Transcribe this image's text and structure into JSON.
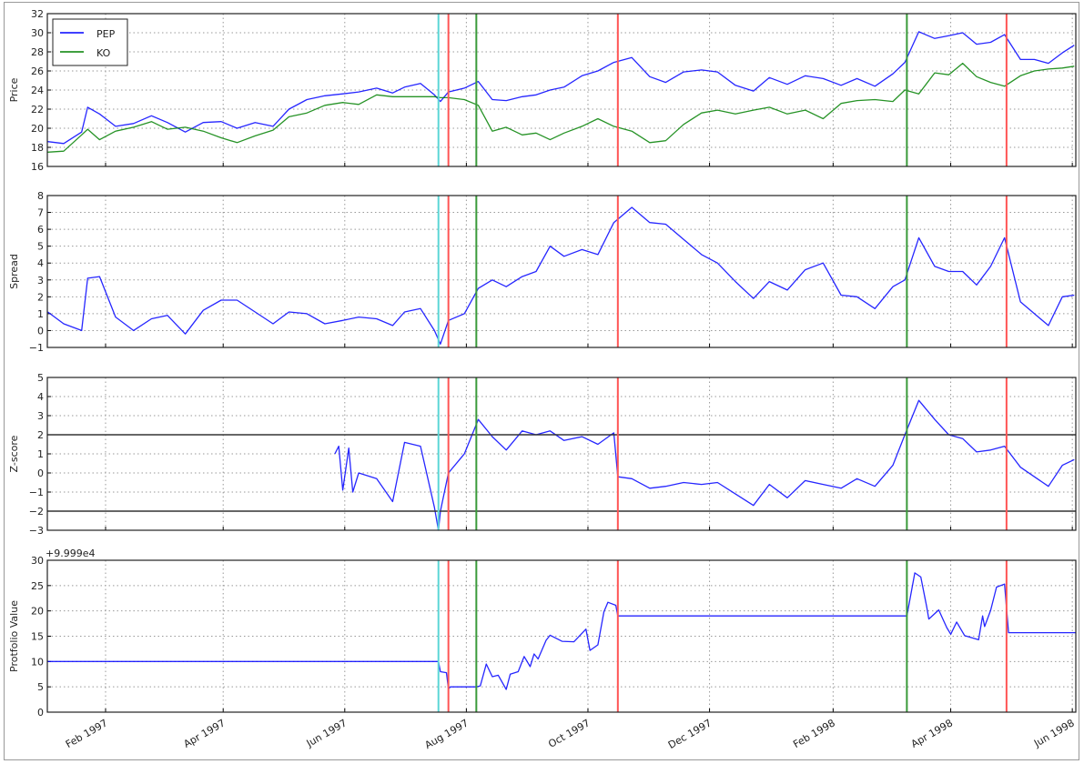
{
  "chart_data": [
    {
      "type": "line",
      "ylabel": "Price",
      "ylim": [
        16,
        32
      ],
      "yticks": [
        16,
        18,
        20,
        22,
        24,
        26,
        28,
        30,
        32
      ],
      "grid": true,
      "legend": "top-left",
      "series": [
        {
          "name": "PEP",
          "color": "#0000ff",
          "key": "pep"
        },
        {
          "name": "KO",
          "color": "#008000",
          "key": "ko"
        }
      ]
    },
    {
      "type": "line",
      "ylabel": "Spread",
      "ylim": [
        -1,
        8
      ],
      "yticks": [
        -1,
        0,
        1,
        2,
        3,
        4,
        5,
        6,
        7,
        8
      ],
      "grid": true,
      "series": [
        {
          "color": "#0000ff",
          "key": "spread"
        }
      ]
    },
    {
      "type": "line",
      "ylabel": "Z-score",
      "ylim": [
        -3,
        5
      ],
      "yticks": [
        -3,
        -2,
        -1,
        0,
        1,
        2,
        3,
        4,
        5
      ],
      "grid": true,
      "hlines": [
        2,
        -2
      ],
      "series": [
        {
          "color": "#0000ff",
          "key": "zscore"
        }
      ]
    },
    {
      "type": "line",
      "ylabel": "Protfolio Value",
      "offset_label": "+9.999e4",
      "ylim": [
        0,
        30
      ],
      "yticks": [
        0,
        5,
        10,
        15,
        20,
        25,
        30
      ],
      "grid": true,
      "series": [
        {
          "color": "#0000ff",
          "key": "portfolio"
        }
      ]
    }
  ],
  "x_axis": {
    "type": "date",
    "range": [
      "1997-01-03",
      "1998-06-03"
    ],
    "ticks": [
      {
        "date": "1997-02-01",
        "label": "Feb 1997"
      },
      {
        "date": "1997-04-01",
        "label": "Apr 1997"
      },
      {
        "date": "1997-06-01",
        "label": "Jun 1997"
      },
      {
        "date": "1997-08-01",
        "label": "Aug 1997"
      },
      {
        "date": "1997-10-01",
        "label": "Oct 1997"
      },
      {
        "date": "1997-12-01",
        "label": "Dec 1997"
      },
      {
        "date": "1998-02-01",
        "label": "Feb 1998"
      },
      {
        "date": "1998-04-01",
        "label": "Apr 1998"
      },
      {
        "date": "1998-06-01",
        "label": "Jun 1998"
      }
    ]
  },
  "event_lines": [
    {
      "date": "1997-07-18",
      "color": "#5cd6d6"
    },
    {
      "date": "1997-07-23",
      "color": "#ff5555"
    },
    {
      "date": "1997-08-06",
      "color": "#3a9a3a"
    },
    {
      "date": "1997-10-16",
      "color": "#ff5555"
    },
    {
      "date": "1998-03-10",
      "color": "#3a9a3a"
    },
    {
      "date": "1998-04-29",
      "color": "#ff5555"
    }
  ],
  "series_data": {
    "dates": [
      "1997-01-03",
      "1997-01-11",
      "1997-01-20",
      "1997-01-23",
      "1997-01-29",
      "1997-02-06",
      "1997-02-15",
      "1997-02-24",
      "1997-03-04",
      "1997-03-13",
      "1997-03-22",
      "1997-03-31",
      "1997-04-08",
      "1997-04-17",
      "1997-04-26",
      "1997-05-04",
      "1997-05-13",
      "1997-05-22",
      "1997-05-31",
      "1997-06-08",
      "1997-06-17",
      "1997-06-25",
      "1997-07-01",
      "1997-07-09",
      "1997-07-16",
      "1997-07-19",
      "1997-07-23",
      "1997-07-31",
      "1997-08-07",
      "1997-08-14",
      "1997-08-21",
      "1997-08-29",
      "1997-09-05",
      "1997-09-12",
      "1997-09-19",
      "1997-09-28",
      "1997-10-06",
      "1997-10-14",
      "1997-10-23",
      "1997-11-01",
      "1997-11-09",
      "1997-11-18",
      "1997-11-27",
      "1997-12-05",
      "1997-12-14",
      "1997-12-23",
      "1997-12-31",
      "1998-01-09",
      "1998-01-18",
      "1998-01-27",
      "1998-02-05",
      "1998-02-13",
      "1998-02-22",
      "1998-03-03",
      "1998-03-09",
      "1998-03-16",
      "1998-03-24",
      "1998-03-31",
      "1998-04-07",
      "1998-04-14",
      "1998-04-21",
      "1998-04-28",
      "1998-05-06",
      "1998-05-13",
      "1998-05-20",
      "1998-05-27",
      "1998-06-02"
    ],
    "pep": [
      18.6,
      18.4,
      19.6,
      22.2,
      21.5,
      20.2,
      20.5,
      21.3,
      20.6,
      19.6,
      20.6,
      20.7,
      20.0,
      20.6,
      20.2,
      22.0,
      23.0,
      23.4,
      23.6,
      23.8,
      24.2,
      23.7,
      24.3,
      24.7,
      23.5,
      22.8,
      23.8,
      24.2,
      24.9,
      23.0,
      22.9,
      23.3,
      23.5,
      24.0,
      24.3,
      25.5,
      26.0,
      26.9,
      27.4,
      25.4,
      24.8,
      25.9,
      26.1,
      25.9,
      24.5,
      23.9,
      25.3,
      24.6,
      25.5,
      25.2,
      24.5,
      25.2,
      24.4,
      25.7,
      26.9,
      30.1,
      29.4,
      29.7,
      30.0,
      28.8,
      29.0,
      29.8,
      27.2,
      27.2,
      26.8,
      27.9,
      28.7
    ],
    "ko": [
      17.5,
      17.6,
      19.3,
      19.9,
      18.8,
      19.7,
      20.1,
      20.7,
      19.9,
      20.1,
      19.7,
      19.0,
      18.5,
      19.2,
      19.8,
      21.2,
      21.6,
      22.4,
      22.7,
      22.5,
      23.5,
      23.3,
      23.3,
      23.3,
      23.3,
      23.2,
      23.2,
      23.0,
      22.4,
      19.7,
      20.1,
      19.3,
      19.5,
      18.8,
      19.5,
      20.2,
      21.0,
      20.2,
      19.7,
      18.5,
      18.7,
      20.4,
      21.6,
      21.9,
      21.5,
      21.9,
      22.2,
      21.5,
      21.9,
      21.0,
      22.6,
      22.9,
      23.0,
      22.8,
      24.0,
      23.6,
      25.8,
      25.6,
      26.8,
      25.4,
      24.8,
      24.4,
      25.5,
      26.0,
      26.2,
      26.3,
      26.5
    ],
    "spread": [
      1.1,
      0.4,
      0.0,
      3.1,
      3.2,
      0.8,
      0.0,
      0.7,
      0.9,
      -0.2,
      1.2,
      1.8,
      1.8,
      1.1,
      0.4,
      1.1,
      1.0,
      0.4,
      0.6,
      0.8,
      0.7,
      0.3,
      1.1,
      1.3,
      0.0,
      -0.8,
      0.6,
      1.0,
      2.5,
      3.0,
      2.6,
      3.2,
      3.5,
      5.0,
      4.4,
      4.8,
      4.5,
      6.4,
      7.3,
      6.4,
      6.3,
      5.4,
      4.5,
      4.0,
      2.9,
      1.9,
      2.9,
      2.4,
      3.6,
      4.0,
      2.1,
      2.0,
      1.3,
      2.6,
      3.0,
      5.5,
      3.8,
      3.5,
      3.5,
      2.7,
      3.8,
      5.5,
      1.7,
      1.0,
      0.3,
      2.0,
      2.1
    ],
    "zscore_dates": [
      "1997-05-27",
      "1997-05-29",
      "1997-05-31",
      "1997-06-03",
      "1997-06-05",
      "1997-06-08",
      "1997-06-17",
      "1997-06-25",
      "1997-07-01",
      "1997-07-09",
      "1997-07-16",
      "1997-07-18",
      "1997-07-19",
      "1997-07-23",
      "1997-07-31",
      "1997-08-07",
      "1997-08-14",
      "1997-08-21",
      "1997-08-29",
      "1997-09-05",
      "1997-09-12",
      "1997-09-19",
      "1997-09-28",
      "1997-10-06",
      "1997-10-14",
      "1997-10-16",
      "1997-10-23",
      "1997-11-01",
      "1997-11-09",
      "1997-11-18",
      "1997-11-27",
      "1997-12-05",
      "1997-12-14",
      "1997-12-23",
      "1997-12-31",
      "1998-01-09",
      "1998-01-18",
      "1998-01-27",
      "1998-02-05",
      "1998-02-13",
      "1998-02-22",
      "1998-03-03",
      "1998-03-09",
      "1998-03-16",
      "1998-03-24",
      "1998-03-31",
      "1998-04-07",
      "1998-04-14",
      "1998-04-21",
      "1998-04-28",
      "1998-05-06",
      "1998-05-13",
      "1998-05-20",
      "1998-05-27",
      "1998-06-02"
    ],
    "zscore": [
      1.0,
      1.4,
      -0.9,
      1.3,
      -1.0,
      0.0,
      -0.3,
      -1.5,
      1.6,
      1.4,
      -1.8,
      -3.0,
      -2.0,
      0.0,
      1.0,
      2.8,
      1.9,
      1.2,
      2.2,
      2.0,
      2.2,
      1.7,
      1.9,
      1.5,
      2.1,
      -0.2,
      -0.3,
      -0.8,
      -0.7,
      -0.5,
      -0.6,
      -0.5,
      -1.1,
      -1.7,
      -0.6,
      -1.3,
      -0.4,
      -0.6,
      -0.8,
      -0.3,
      -0.7,
      0.4,
      2.0,
      3.8,
      2.8,
      2.0,
      1.8,
      1.1,
      1.2,
      1.4,
      0.3,
      -0.2,
      -0.7,
      0.4,
      0.7
    ],
    "portfolio_dates": [
      "1997-01-03",
      "1997-07-18",
      "1997-07-19",
      "1997-07-22",
      "1997-07-23",
      "1997-07-24",
      "1997-08-06",
      "1997-08-08",
      "1997-08-11",
      "1997-08-14",
      "1997-08-17",
      "1997-08-21",
      "1997-08-23",
      "1997-08-27",
      "1997-08-30",
      "1997-09-02",
      "1997-09-04",
      "1997-09-06",
      "1997-09-10",
      "1997-09-12",
      "1997-09-18",
      "1997-09-24",
      "1997-09-30",
      "1997-10-02",
      "1997-10-06",
      "1997-10-09",
      "1997-10-11",
      "1997-10-15",
      "1997-10-16",
      "1998-03-10",
      "1998-03-14",
      "1998-03-17",
      "1998-03-20",
      "1998-03-21",
      "1998-03-26",
      "1998-03-30",
      "1998-04-01",
      "1998-04-04",
      "1998-04-08",
      "1998-04-15",
      "1998-04-17",
      "1998-04-18",
      "1998-04-21",
      "1998-04-24",
      "1998-04-28",
      "1998-04-30",
      "1998-06-03"
    ],
    "portfolio": [
      10,
      10,
      8.0,
      7.8,
      4.6,
      5,
      5,
      5.2,
      9.5,
      7,
      7.3,
      4.5,
      7.5,
      8,
      11,
      9,
      11.5,
      10.5,
      14.2,
      15.2,
      14,
      13.9,
      16.4,
      12.2,
      13.3,
      19.8,
      21.7,
      21.1,
      19.0,
      19.0,
      27.5,
      26.7,
      20.7,
      18.4,
      20.2,
      16.7,
      15.4,
      17.8,
      15.1,
      14.3,
      19,
      16.9,
      20.1,
      24.7,
      25.3,
      15.7,
      15.7
    ]
  }
}
